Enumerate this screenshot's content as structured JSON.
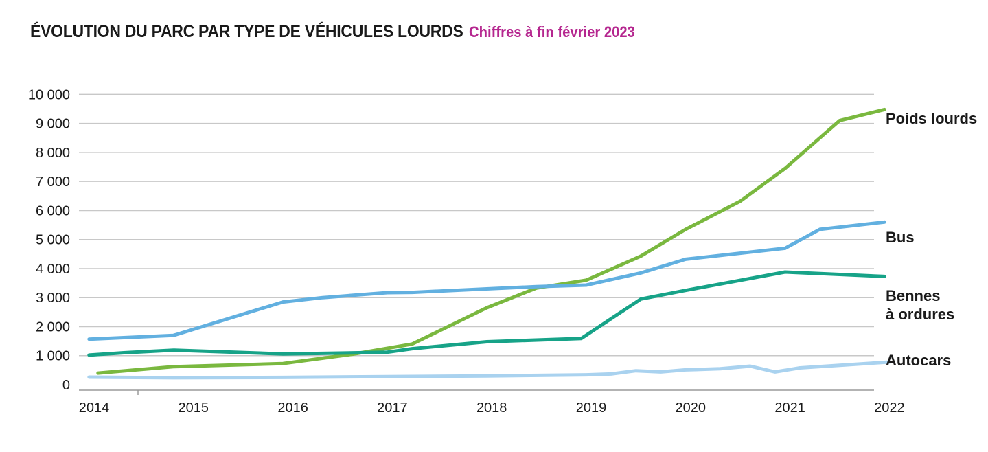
{
  "title": "ÉVOLUTION DU PARC PAR TYPE DE VÉHICULES LOURDS",
  "subtitle": "Chiffres à fin février 2023",
  "colors": {
    "title": "#1a1a1a",
    "subtitle": "#b5278f",
    "grid": "#c8c8c8"
  },
  "chart_data": {
    "type": "line",
    "title": "ÉVOLUTION DU PARC PAR TYPE DE VÉHICULES LOURDS",
    "subtitle": "Chiffres à fin février 2023",
    "xlabel": "",
    "ylabel": "",
    "xlim": [
      2014,
      2022
    ],
    "ylim": [
      0,
      10000
    ],
    "x_ticks": [
      "2014",
      "2015",
      "2016",
      "2017",
      "2018",
      "2019",
      "2020",
      "2021",
      "2022"
    ],
    "y_ticks": [
      "0",
      "1 000",
      "2 000",
      "3 000",
      "4 000",
      "5 000",
      "6 000",
      "7 000",
      "8 000",
      "9 000",
      "10 000"
    ],
    "grid": true,
    "legend": "right end labels",
    "series": [
      {
        "name": "Poids lourds",
        "label_lines": [
          "Poids lourds"
        ],
        "color": "#7ab83f",
        "points": [
          [
            2014.04,
            400
          ],
          [
            2014.8,
            620
          ],
          [
            2015.9,
            730
          ],
          [
            2016.6,
            1050
          ],
          [
            2017.2,
            1400
          ],
          [
            2017.95,
            2650
          ],
          [
            2018.45,
            3330
          ],
          [
            2018.95,
            3600
          ],
          [
            2019.5,
            4430
          ],
          [
            2019.95,
            5350
          ],
          [
            2020.5,
            6320
          ],
          [
            2020.95,
            7450
          ],
          [
            2021.5,
            9100
          ],
          [
            2021.95,
            9480
          ]
        ]
      },
      {
        "name": "Bus",
        "label_lines": [
          "Bus"
        ],
        "color": "#62b0e0",
        "points": [
          [
            2013.95,
            1570
          ],
          [
            2014.8,
            1700
          ],
          [
            2015.9,
            2850
          ],
          [
            2016.3,
            3000
          ],
          [
            2016.95,
            3170
          ],
          [
            2017.2,
            3180
          ],
          [
            2017.95,
            3300
          ],
          [
            2018.45,
            3380
          ],
          [
            2018.95,
            3430
          ],
          [
            2019.5,
            3850
          ],
          [
            2019.95,
            4320
          ],
          [
            2020.95,
            4700
          ],
          [
            2021.3,
            5350
          ],
          [
            2021.95,
            5600
          ]
        ]
      },
      {
        "name": "Bennes à ordures",
        "label_lines": [
          "Bennes",
          "à ordures"
        ],
        "color": "#17a388",
        "points": [
          [
            2013.95,
            1020
          ],
          [
            2014.3,
            1100
          ],
          [
            2014.8,
            1190
          ],
          [
            2015.9,
            1060
          ],
          [
            2016.3,
            1080
          ],
          [
            2016.95,
            1120
          ],
          [
            2017.2,
            1240
          ],
          [
            2017.95,
            1480
          ],
          [
            2018.9,
            1590
          ],
          [
            2019.5,
            2950
          ],
          [
            2019.95,
            3250
          ],
          [
            2020.95,
            3880
          ],
          [
            2021.95,
            3730
          ]
        ]
      },
      {
        "name": "Autocars",
        "label_lines": [
          "Autocars"
        ],
        "color": "#a9d2ef",
        "points": [
          [
            2013.95,
            260
          ],
          [
            2014.8,
            240
          ],
          [
            2015.9,
            250
          ],
          [
            2016.95,
            280
          ],
          [
            2017.95,
            300
          ],
          [
            2018.95,
            340
          ],
          [
            2019.2,
            370
          ],
          [
            2019.45,
            480
          ],
          [
            2019.7,
            440
          ],
          [
            2019.95,
            510
          ],
          [
            2020.3,
            550
          ],
          [
            2020.6,
            640
          ],
          [
            2020.85,
            440
          ],
          [
            2021.1,
            580
          ],
          [
            2021.5,
            670
          ],
          [
            2022.0,
            780
          ]
        ]
      }
    ]
  }
}
